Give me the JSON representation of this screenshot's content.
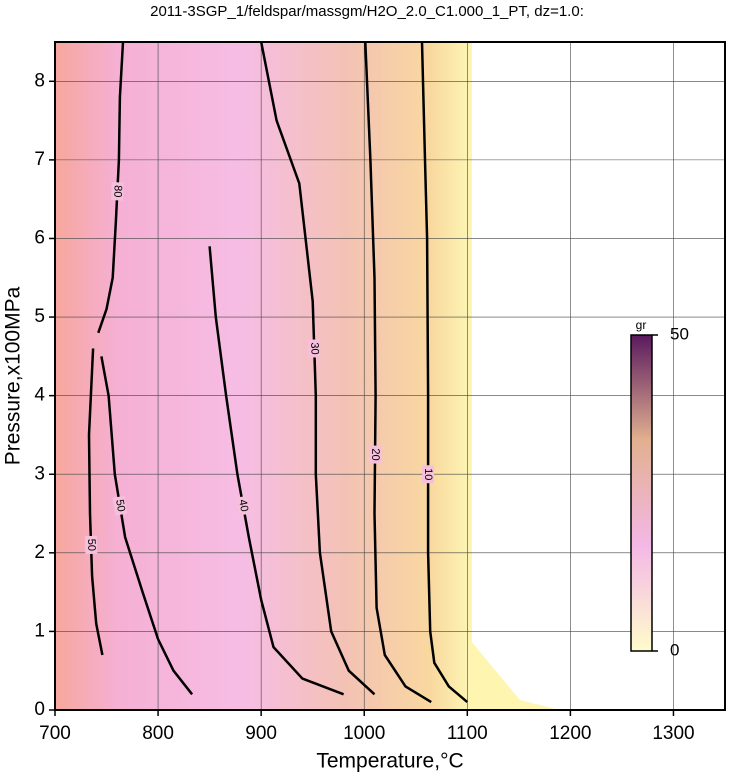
{
  "chart_data": {
    "type": "contour",
    "title": "2011-3SGP_1/feldspar/massgm/H2O_2.0_C1.000_1_PT, dz=1.0:",
    "x_label": "Temperature,°C",
    "y_label": "Pressure,x100MPa",
    "xlim": [
      700,
      1350
    ],
    "ylim": [
      0,
      8.5
    ],
    "xticks": [
      700,
      800,
      900,
      1000,
      1100,
      1200,
      1300
    ],
    "yticks": [
      0,
      1,
      2,
      3,
      4,
      5,
      6,
      7,
      8
    ],
    "grid": true,
    "line_color": "#000000",
    "contours": [
      {
        "level": 10,
        "x": [
          1056,
          1059,
          1061,
          1062,
          1062,
          1064,
          1068,
          1082,
          1100
        ],
        "y": [
          8.5,
          7,
          6,
          4,
          2,
          1,
          0.6,
          0.3,
          0.1
        ]
      },
      {
        "level": 20,
        "x": [
          1001,
          1006,
          1010,
          1011,
          1010,
          1012,
          1020,
          1040,
          1065
        ],
        "y": [
          8.5,
          7,
          5.5,
          4,
          2.5,
          1.3,
          0.7,
          0.3,
          0.1
        ]
      },
      {
        "level": 30,
        "x": [
          900,
          915,
          937,
          950,
          953,
          953,
          957,
          968,
          985,
          1010
        ],
        "y": [
          8.5,
          7.5,
          6.7,
          5.2,
          4,
          3,
          2,
          1,
          0.5,
          0.2
        ]
      },
      {
        "level": 40,
        "x": [
          850,
          856,
          866,
          877,
          888,
          900,
          912,
          940,
          980
        ],
        "y": [
          5.9,
          5,
          4,
          3,
          2.2,
          1.4,
          0.8,
          0.4,
          0.2
        ]
      },
      {
        "level": 50,
        "x": [
          745,
          752,
          758,
          768,
          785,
          800,
          815,
          833
        ],
        "y": [
          4.5,
          4,
          3,
          2.2,
          1.5,
          0.9,
          0.5,
          0.2
        ]
      },
      {
        "level": 50,
        "x": [
          737,
          733,
          734,
          736,
          740,
          746
        ],
        "y": [
          4.6,
          3.5,
          2.5,
          1.7,
          1.1,
          0.7
        ]
      },
      {
        "level": 80,
        "x": [
          766,
          763,
          762,
          759,
          756,
          750,
          742
        ],
        "y": [
          8.5,
          7.8,
          7,
          6.2,
          5.5,
          5.1,
          4.8
        ]
      }
    ],
    "colorbar": {
      "label": "gr",
      "lim": [
        0,
        50
      ],
      "ticks": [
        0,
        50
      ],
      "colors": [
        "#fffccc",
        "#f4b8e6",
        "#e2b090",
        "#5a1a5e"
      ]
    }
  }
}
